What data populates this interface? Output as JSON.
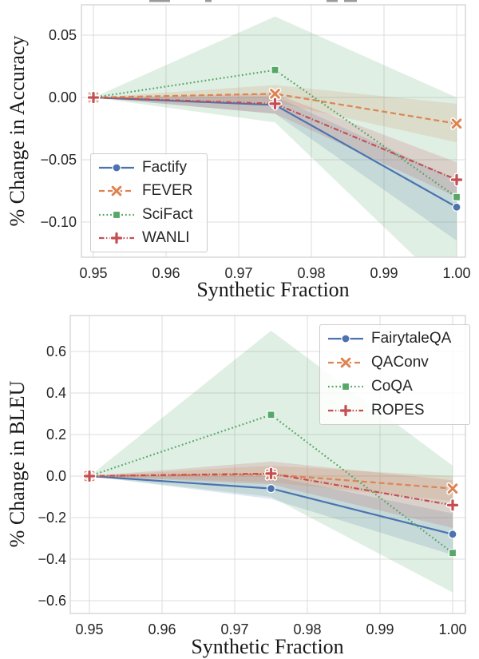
{
  "figure": {
    "background": "#ffffff",
    "text_color": "#262626",
    "grid_color": "#dcdcdc",
    "spine_color": "#cfcfcf",
    "clipped_title_marks": [
      [
        187,
        26
      ],
      [
        257,
        8
      ],
      [
        409,
        14
      ],
      [
        431,
        16
      ]
    ]
  },
  "chart_data": [
    {
      "type": "line",
      "xlabel": "Synthetic Fraction",
      "ylabel": "% Change in Accuracy",
      "x": [
        0.95,
        0.975,
        1.0
      ],
      "xlim": [
        0.94835,
        1.00121
      ],
      "ylim": [
        -0.1282,
        0.0744
      ],
      "grid": true,
      "legend_position": "lower left",
      "xticks": [
        {
          "v": 0.95,
          "label": "0.95"
        },
        {
          "v": 0.96,
          "label": "0.96"
        },
        {
          "v": 0.97,
          "label": "0.97"
        },
        {
          "v": 0.98,
          "label": "0.98"
        },
        {
          "v": 0.99,
          "label": "0.99"
        },
        {
          "v": 1.0,
          "label": "1.00"
        }
      ],
      "yticks": [
        {
          "v": 0.05,
          "label": "0.05"
        },
        {
          "v": 0.0,
          "label": "0.00"
        },
        {
          "v": -0.05,
          "label": "−0.05"
        },
        {
          "v": -0.1,
          "label": "−0.10"
        }
      ],
      "series": [
        {
          "name": "Factify",
          "color": "#4C72B0",
          "dash": "solid",
          "marker": "circle",
          "values": [
            0,
            -0.006,
            -0.088
          ],
          "ci_low": [
            0,
            -0.013,
            -0.115
          ],
          "ci_high": [
            0,
            0.001,
            -0.066
          ]
        },
        {
          "name": "FEVER",
          "color": "#DD8452",
          "dash": "dashed",
          "marker": "x",
          "values": [
            0,
            0.003,
            -0.021
          ],
          "ci_low": [
            0,
            -0.004,
            -0.036
          ],
          "ci_high": [
            0,
            0.01,
            -0.005
          ]
        },
        {
          "name": "SciFact",
          "color": "#55A868",
          "dash": "dotted",
          "marker": "square",
          "values": [
            0,
            0.022,
            -0.08
          ],
          "ci_low": [
            0,
            -0.02,
            -0.16
          ],
          "ci_high": [
            0,
            0.065,
            0.0
          ]
        },
        {
          "name": "WANLI",
          "color": "#C44E52",
          "dash": "dashdot",
          "marker": "plus",
          "values": [
            0,
            -0.005,
            -0.066
          ],
          "ci_low": [
            0,
            -0.013,
            -0.08
          ],
          "ci_high": [
            0,
            0.003,
            -0.052
          ]
        }
      ]
    },
    {
      "type": "line",
      "xlabel": "Synthetic Fraction",
      "ylabel": "% Change in BLEU",
      "x": [
        0.95,
        0.975,
        1.0
      ],
      "xlim": [
        0.94736,
        1.00176
      ],
      "ylim": [
        -0.6615,
        0.7731
      ],
      "grid": true,
      "legend_position": "upper right",
      "xticks": [
        {
          "v": 0.95,
          "label": "0.95"
        },
        {
          "v": 0.96,
          "label": "0.96"
        },
        {
          "v": 0.97,
          "label": "0.97"
        },
        {
          "v": 0.98,
          "label": "0.98"
        },
        {
          "v": 0.99,
          "label": "0.99"
        },
        {
          "v": 1.0,
          "label": "1.00"
        }
      ],
      "yticks": [
        {
          "v": 0.6,
          "label": "0.6"
        },
        {
          "v": 0.4,
          "label": "0.4"
        },
        {
          "v": 0.2,
          "label": "0.2"
        },
        {
          "v": 0.0,
          "label": "0.0"
        },
        {
          "v": -0.2,
          "label": "−0.2"
        },
        {
          "v": -0.4,
          "label": "−0.4"
        },
        {
          "v": -0.6,
          "label": "−0.6"
        }
      ],
      "series": [
        {
          "name": "FairytaleQA",
          "color": "#4C72B0",
          "dash": "solid",
          "marker": "circle",
          "values": [
            0,
            -0.06,
            -0.28
          ],
          "ci_low": [
            0,
            -0.11,
            -0.38
          ],
          "ci_high": [
            0,
            0.0,
            -0.18
          ]
        },
        {
          "name": "QAConv",
          "color": "#DD8452",
          "dash": "dashed",
          "marker": "x",
          "values": [
            0,
            0.008,
            -0.06
          ],
          "ci_low": [
            0,
            -0.03,
            -0.12
          ],
          "ci_high": [
            0,
            0.05,
            0.0
          ]
        },
        {
          "name": "CoQA",
          "color": "#55A868",
          "dash": "dotted",
          "marker": "square",
          "values": [
            0,
            0.295,
            -0.37
          ],
          "ci_low": [
            0,
            -0.1,
            -0.56
          ],
          "ci_high": [
            0,
            0.7,
            0.05
          ]
        },
        {
          "name": "ROPES",
          "color": "#C44E52",
          "dash": "dashdot",
          "marker": "plus",
          "values": [
            0,
            0.012,
            -0.14
          ],
          "ci_low": [
            0,
            -0.04,
            -0.25
          ],
          "ci_high": [
            0,
            0.07,
            -0.02
          ]
        }
      ]
    }
  ]
}
